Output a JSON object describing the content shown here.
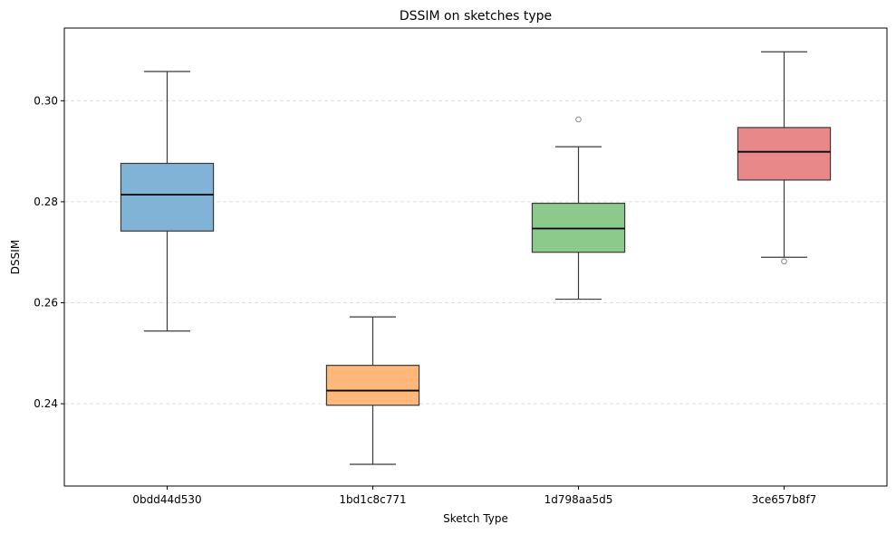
{
  "chart_data": {
    "type": "box",
    "title": "DSSIM on sketches type",
    "xlabel": "Sketch Type",
    "ylabel": "DSSIM",
    "categories": [
      "0bdd44d530",
      "1bd1c8c771",
      "1d798aa5d5",
      "3ce657b8f7"
    ],
    "ylim": [
      0.2237,
      0.3144
    ],
    "yticks": [
      0.24,
      0.26,
      0.28,
      0.3
    ],
    "ytick_labels": [
      "0.24",
      "0.26",
      "0.28",
      "0.30"
    ],
    "grid": "y dashed",
    "boxes": [
      {
        "category": "0bdd44d530",
        "whisker_low": 0.2544,
        "q1": 0.2742,
        "median": 0.2814,
        "q3": 0.2876,
        "whisker_high": 0.3058,
        "outliers": [],
        "color": "#80b3d6"
      },
      {
        "category": "1bd1c8c771",
        "whisker_low": 0.228,
        "q1": 0.2397,
        "median": 0.2426,
        "q3": 0.2476,
        "whisker_high": 0.2572,
        "outliers": [],
        "color": "#ffb77a"
      },
      {
        "category": "1d798aa5d5",
        "whisker_low": 0.2607,
        "q1": 0.27,
        "median": 0.2747,
        "q3": 0.2797,
        "whisker_high": 0.2909,
        "outliers": [
          0.2963
        ],
        "color": "#8cca8c"
      },
      {
        "category": "3ce657b8f7",
        "whisker_low": 0.269,
        "q1": 0.2843,
        "median": 0.2899,
        "q3": 0.2947,
        "whisker_high": 0.3097,
        "outliers": [
          0.2682
        ],
        "color": "#e88888"
      }
    ]
  }
}
